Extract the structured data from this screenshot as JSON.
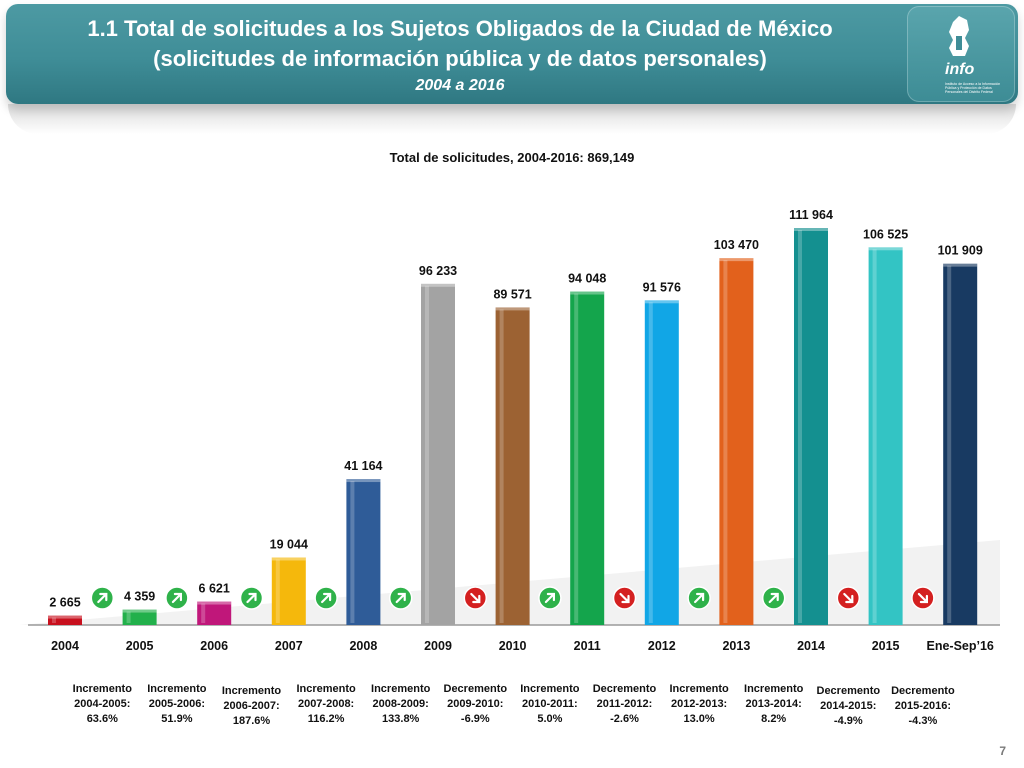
{
  "header": {
    "title_line1": "1.1 Total de solicitudes a los Sujetos Obligados de la Ciudad de México",
    "title_line2": "(solicitudes de información pública y de datos personales)",
    "subtitle": "2004 a 2016",
    "logo_text": "info",
    "logo_small_text": "Instituto de Acceso a la Información Pública y Protección de Datos Personales del Distrito Federal"
  },
  "colors": {
    "banner": "#3f8d97",
    "up_arrow": "#2fb24a",
    "down_arrow": "#d42020"
  },
  "chart_data": {
    "type": "bar",
    "title": "Total de solicitudes, 2004-2016: 869,149",
    "categories": [
      "2004",
      "2005",
      "2006",
      "2007",
      "2008",
      "2009",
      "2010",
      "2011",
      "2012",
      "2013",
      "2014",
      "2015",
      "Ene-Sep’16"
    ],
    "values": [
      2665,
      4359,
      6621,
      19044,
      41164,
      96233,
      89571,
      94048,
      91576,
      103470,
      111964,
      106525,
      101909
    ],
    "value_labels": [
      "2 665",
      "4 359",
      "6 621",
      "19 044",
      "41 164",
      "96 233",
      "89 571",
      "94 048",
      "91 576",
      "103 470",
      "111 964",
      "106 525",
      "101 909"
    ],
    "bar_colors": [
      "#c8101e",
      "#22b04b",
      "#c0177a",
      "#f5b80c",
      "#2f5c98",
      "#a3a3a3",
      "#9c6233",
      "#14a54c",
      "#11a6e6",
      "#e2611c",
      "#149090",
      "#33c4c4",
      "#183a62"
    ],
    "ylim": [
      0,
      120000
    ],
    "xlabel": "",
    "ylabel": "",
    "grid": false,
    "legend": "none"
  },
  "changes": [
    {
      "label": "Incremento\n2004-2005:\n63.6%",
      "direction": "up"
    },
    {
      "label": "Incremento\n2005-2006:\n51.9%",
      "direction": "up"
    },
    {
      "label": "Incremento\n2006-2007:\n187.6%",
      "direction": "up"
    },
    {
      "label": "Incremento\n2007-2008:\n116.2%",
      "direction": "up"
    },
    {
      "label": "Incremento\n2008-2009:\n133.8%",
      "direction": "up"
    },
    {
      "label": "Decremento\n2009-2010:\n-6.9%",
      "direction": "down"
    },
    {
      "label": "Incremento\n2010-2011:\n5.0%",
      "direction": "up"
    },
    {
      "label": "Decremento\n2011-2012:\n-2.6%",
      "direction": "down"
    },
    {
      "label": "Incremento\n2012-2013:\n13.0%",
      "direction": "up"
    },
    {
      "label": "Incremento\n2013-2014:\n8.2%",
      "direction": "up"
    },
    {
      "label": "Decremento\n2014-2015:\n-4.9%",
      "direction": "down"
    },
    {
      "label": "Decremento\n2015-2016:\n-4.3%",
      "direction": "down"
    }
  ],
  "page_number": "7"
}
